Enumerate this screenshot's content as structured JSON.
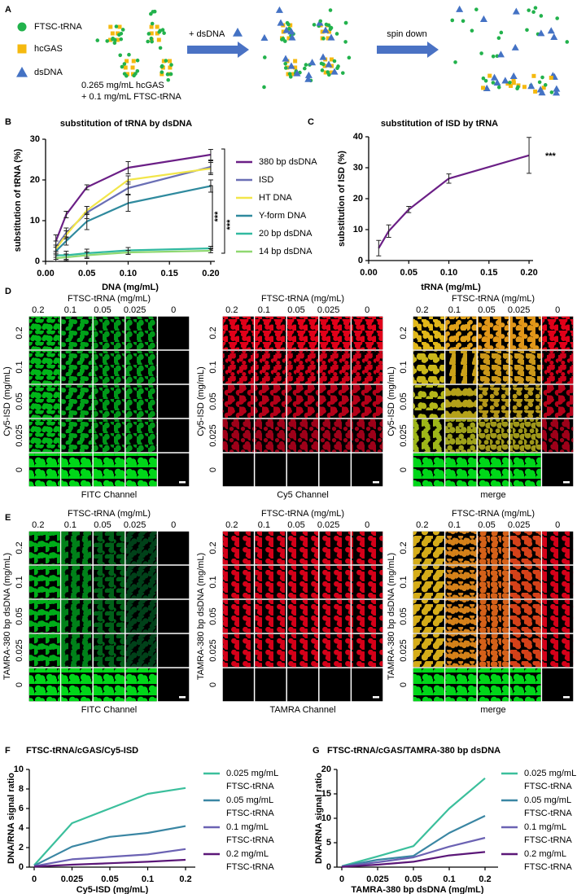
{
  "panel_labels": [
    "A",
    "B",
    "C",
    "D",
    "E",
    "F",
    "G"
  ],
  "schematic": {
    "legend": [
      "FTSC-tRNA",
      "hcGAS",
      "dsDNA"
    ],
    "conditions": [
      "0.265 mg/mL hcGAS",
      "+ 0.1 mg/mL FTSC-tRNA"
    ],
    "step1": "+ dsDNA",
    "step2": "spin down"
  },
  "chart_data": [
    {
      "type": "line",
      "title": "substitution of tRNA by dsDNA",
      "xlabel": "DNA (mg/mL)",
      "ylabel": "substitution of tRNA (%)",
      "x": [
        0.0125,
        0.025,
        0.05,
        0.1,
        0.2
      ],
      "xlim": [
        0,
        0.205
      ],
      "xticks": [
        {
          "value": 0,
          "label": "0.00"
        },
        0.05,
        {
          "value": 0.1,
          "label": "0.10"
        },
        0.15,
        {
          "value": 0.2,
          "label": "0.20"
        }
      ],
      "ylim": [
        0,
        30
      ],
      "yticks": [
        0,
        10,
        20,
        30
      ],
      "series": [
        {
          "name": "380 bp dsDNA",
          "color": "#6b1f86",
          "values": [
            5,
            11.5,
            18.2,
            23,
            26.2
          ],
          "errors": [
            1.5,
            0.8,
            0.6,
            1.5,
            1.3
          ]
        },
        {
          "name": "ISD",
          "color": "#6a6fb5",
          "values": [
            3.5,
            7,
            12,
            18,
            23.2
          ],
          "errors": [
            1.5,
            1.2,
            1.5,
            1.5,
            1.5
          ]
        },
        {
          "name": "HT DNA",
          "color": "#f2e64a",
          "values": [
            3,
            6.5,
            12.5,
            20,
            22.8
          ],
          "errors": [
            1,
            1,
            1,
            1,
            1.5
          ]
        },
        {
          "name": "Y-form DNA",
          "color": "#2f8a9e",
          "values": [
            2.5,
            5,
            9.8,
            14.3,
            18.5
          ],
          "errors": [
            1.5,
            1,
            2,
            2,
            1.5
          ]
        },
        {
          "name": "20 bp dsDNA",
          "color": "#31b9a0",
          "values": [
            1.5,
            1.5,
            2,
            2.7,
            3.2
          ],
          "errors": [
            1,
            1,
            1,
            0.7,
            0.5
          ]
        },
        {
          "name": "14 bp dsDNA",
          "color": "#8fd870",
          "values": [
            0.8,
            1,
            1.5,
            2.2,
            2.6
          ],
          "errors": [
            0.8,
            0.8,
            0.8,
            0.5,
            0.5
          ]
        }
      ],
      "annotations": [
        "***",
        "***"
      ]
    },
    {
      "type": "line",
      "title": "substitution of ISD by tRNA",
      "xlabel": "tRNA (mg/mL)",
      "ylabel": "substitution of ISD (%)",
      "x": [
        0.0125,
        0.025,
        0.05,
        0.1,
        0.2
      ],
      "xlim": [
        0,
        0.205
      ],
      "xticks": [
        {
          "value": 0,
          "label": "0.00"
        },
        0.05,
        {
          "value": 0.1,
          "label": "0.10"
        },
        0.15,
        {
          "value": 0.2,
          "label": "0.20"
        }
      ],
      "ylim": [
        0,
        40
      ],
      "yticks": [
        0,
        10,
        20,
        30,
        40
      ],
      "color": "#6b1f86",
      "values": [
        4,
        9.5,
        16.5,
        26.5,
        34
      ],
      "errors": [
        2.5,
        2,
        1,
        1.5,
        5.8
      ],
      "annotations": [
        "***"
      ]
    },
    {
      "type": "line",
      "title": "FTSC-tRNA/cGAS/Cy5-ISD",
      "xlabel": "Cy5-ISD (mg/mL)",
      "ylabel": "DNA/RNA signal ratio",
      "categories": [
        "0",
        "0.025",
        "0.05",
        "0.1",
        "0.2"
      ],
      "ylim": [
        0,
        10
      ],
      "yticks": [
        0,
        2,
        4,
        6,
        8,
        10
      ],
      "series": [
        {
          "name": "0.025 mg/mL FTSC-tRNA",
          "color": "#3bbf9c",
          "values": [
            0.2,
            4.5,
            6,
            7.5,
            8.1
          ]
        },
        {
          "name": "0.05 mg/mL FTSC-tRNA",
          "color": "#3a86a3",
          "values": [
            0.15,
            2.1,
            3.1,
            3.5,
            4.2
          ]
        },
        {
          "name": "0.1 mg/mL FTSC-tRNA",
          "color": "#6b62b3",
          "values": [
            0.1,
            0.8,
            1.05,
            1.3,
            1.85
          ]
        },
        {
          "name": "0.2 mg/mL FTSC-tRNA",
          "color": "#5b1778",
          "values": [
            0.05,
            0.25,
            0.4,
            0.55,
            0.75
          ]
        }
      ]
    },
    {
      "type": "line",
      "title": "FTSC-tRNA/cGAS/TAMRA-380 bp dsDNA",
      "xlabel": "TAMRA-380 bp dsDNA (mg/mL)",
      "ylabel": "DNA/RNA signal ratio",
      "categories": [
        "0",
        "0.025",
        "0.05",
        "0.1",
        "0.2"
      ],
      "ylim": [
        0,
        20
      ],
      "yticks": [
        0,
        5,
        10,
        15,
        20
      ],
      "series": [
        {
          "name": "0.025 mg/mL FTSC-tRNA",
          "color": "#3bbf9c",
          "values": [
            0.2,
            2.2,
            4.3,
            12,
            18.2
          ]
        },
        {
          "name": "0.05 mg/mL FTSC-tRNA",
          "color": "#3a86a3",
          "values": [
            0.15,
            1.5,
            2.3,
            7,
            10.5
          ]
        },
        {
          "name": "0.1 mg/mL FTSC-tRNA",
          "color": "#6b62b3",
          "values": [
            0.1,
            1,
            2,
            4.2,
            6
          ]
        },
        {
          "name": "0.2 mg/mL FTSC-tRNA",
          "color": "#5b1778",
          "values": [
            0.05,
            0.5,
            1.1,
            2.4,
            3.1
          ]
        }
      ]
    }
  ],
  "micrographs": [
    {
      "column_title": "FTSC-tRNA (mg/mL)",
      "columns": [
        "0.2",
        "0.1",
        "0.05",
        "0.025",
        "0"
      ],
      "row_title": "Cy5-ISD (mg/mL)",
      "rows": [
        "0.2",
        "0.1",
        "0.05",
        "0.025",
        "0"
      ],
      "channels": [
        "FITC Channel",
        "Cy5 Channel",
        "merge"
      ]
    },
    {
      "column_title": "FTSC-tRNA (mg/mL)",
      "columns": [
        "0.2",
        "0.1",
        "0.05",
        "0.025",
        "0"
      ],
      "row_title": "TAMRA-380 bp dsDNA (mg/mL)",
      "rows": [
        "0.2",
        "0.1",
        "0.05",
        "0.025",
        "0"
      ],
      "channels": [
        "FITC Channel",
        "TAMRA Channel",
        "merge"
      ]
    }
  ]
}
